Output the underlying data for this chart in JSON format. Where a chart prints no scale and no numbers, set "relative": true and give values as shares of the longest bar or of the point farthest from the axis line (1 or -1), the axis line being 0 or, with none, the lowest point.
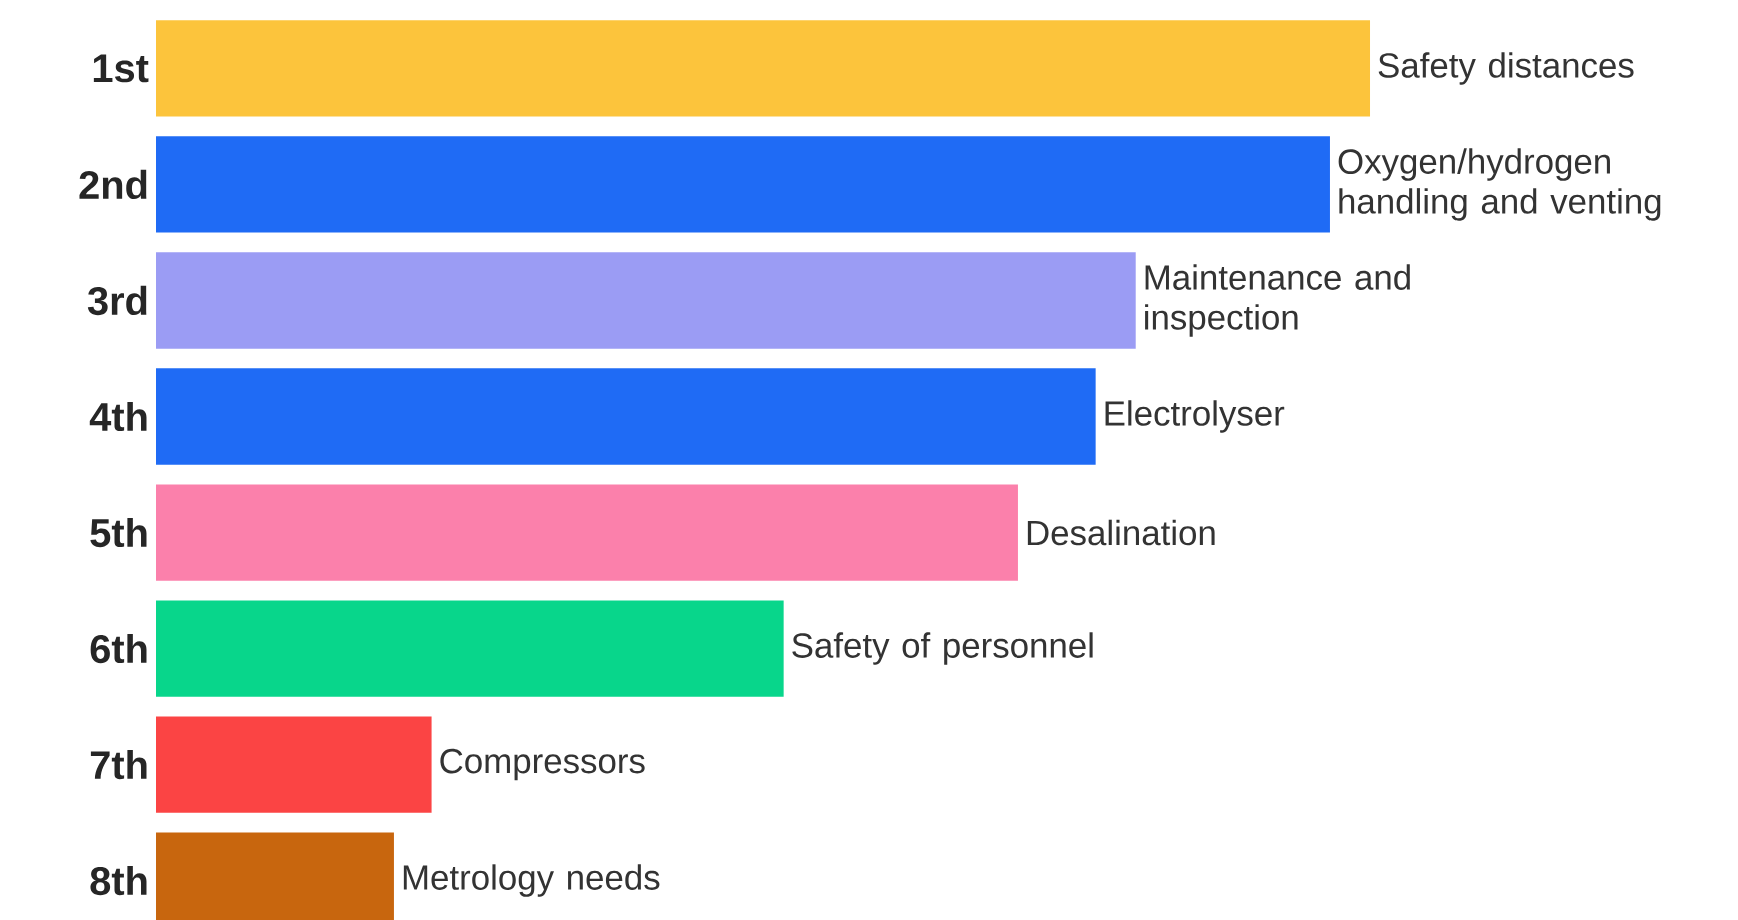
{
  "chart_data": {
    "type": "bar",
    "orientation": "horizontal",
    "relative": true,
    "categories": [
      "1st",
      "2nd",
      "3rd",
      "4th",
      "5th",
      "6th",
      "7th",
      "8th"
    ],
    "values": [
      1,
      0.967,
      0.807,
      0.774,
      0.71,
      0.517,
      0.227,
      0.196
    ],
    "colors": [
      "#fcc43c",
      "#1f6bf5",
      "#9b9cf4",
      "#1f6bf5",
      "#fb80ab",
      "#08d68b",
      "#fb4444",
      "#c8660e"
    ],
    "annotations": [
      {
        "text": "Safety distances",
        "x": 1,
        "y": "1st"
      },
      {
        "text": "Oxygen/hydrogen handling and venting",
        "x": 0.967,
        "y": "2nd"
      },
      {
        "text": "Maintenance and inspection",
        "x": 0.807,
        "y": "3rd"
      },
      {
        "text": "Electrolyser",
        "x": 0.774,
        "y": "4th"
      },
      {
        "text": "Desalination",
        "x": 0.71,
        "y": "5th"
      },
      {
        "text": "Safety of personnel",
        "x": 0.517,
        "y": "6th"
      },
      {
        "text": "Compressors",
        "x": 0.227,
        "y": "7th"
      },
      {
        "text": "Metrology needs",
        "x": 0.196,
        "y": "8th"
      }
    ]
  }
}
